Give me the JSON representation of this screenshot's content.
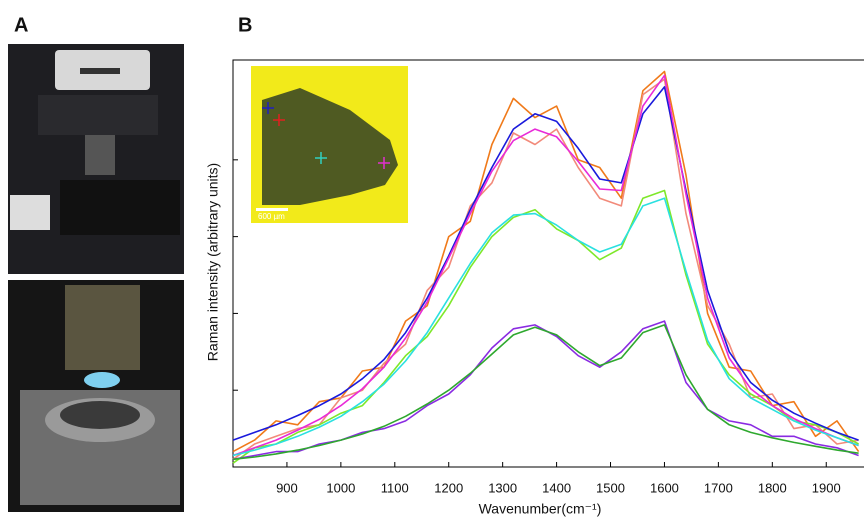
{
  "panels": {
    "a_label": "A",
    "b_label": "B"
  },
  "chart_data": {
    "type": "line",
    "x_label": "Wavenumber(cm⁻¹)",
    "y_label": "Raman intensity (arbitrary units)",
    "inset_scale_label": "600 µm",
    "x": [
      800,
      840,
      880,
      920,
      960,
      1000,
      1040,
      1080,
      1120,
      1160,
      1200,
      1240,
      1280,
      1320,
      1360,
      1400,
      1440,
      1480,
      1520,
      1560,
      1600,
      1640,
      1680,
      1720,
      1760,
      1800,
      1840,
      1880,
      1920,
      1960
    ],
    "xlim": [
      800,
      1970
    ],
    "xticks": [
      900,
      1000,
      1100,
      1200,
      1300,
      1400,
      1500,
      1600,
      1700,
      1800,
      1900
    ],
    "ylim": [
      0,
      5.3
    ],
    "yticks": [
      1,
      2,
      3,
      4
    ],
    "series": [
      {
        "color": "#f07a1a",
        "values": [
          0.2,
          0.35,
          0.6,
          0.55,
          0.85,
          0.9,
          1.25,
          1.3,
          1.9,
          2.1,
          3.0,
          3.2,
          4.2,
          4.8,
          4.55,
          4.7,
          4.0,
          3.9,
          3.5,
          4.9,
          5.15,
          3.8,
          2.0,
          1.3,
          1.25,
          0.8,
          0.85,
          0.4,
          0.6,
          0.2
        ]
      },
      {
        "color": "#f28a7a",
        "values": [
          0.1,
          0.3,
          0.4,
          0.5,
          0.55,
          0.9,
          1.0,
          1.35,
          1.6,
          2.3,
          2.6,
          3.4,
          3.7,
          4.35,
          4.2,
          4.4,
          3.9,
          3.5,
          3.4,
          4.85,
          5.05,
          3.3,
          2.1,
          1.6,
          0.9,
          0.95,
          0.5,
          0.55,
          0.3,
          0.35
        ]
      },
      {
        "color": "#7ee82a",
        "values": [
          0.05,
          0.25,
          0.3,
          0.45,
          0.55,
          0.7,
          0.8,
          1.1,
          1.45,
          1.7,
          2.1,
          2.6,
          3.0,
          3.25,
          3.35,
          3.1,
          2.95,
          2.7,
          2.85,
          3.5,
          3.6,
          2.5,
          1.6,
          1.2,
          0.95,
          0.8,
          0.6,
          0.55,
          0.45,
          0.3
        ]
      },
      {
        "color": "#8a2be2",
        "values": [
          0.1,
          0.15,
          0.2,
          0.2,
          0.3,
          0.35,
          0.45,
          0.5,
          0.6,
          0.8,
          0.95,
          1.2,
          1.55,
          1.8,
          1.85,
          1.7,
          1.45,
          1.3,
          1.5,
          1.8,
          1.9,
          1.1,
          0.75,
          0.6,
          0.55,
          0.4,
          0.4,
          0.3,
          0.25,
          0.15
        ]
      },
      {
        "color": "#1a1adc",
        "values": [
          0.35,
          0.45,
          0.55,
          0.67,
          0.8,
          0.95,
          1.15,
          1.4,
          1.75,
          2.2,
          2.75,
          3.35,
          3.9,
          4.4,
          4.6,
          4.5,
          4.15,
          3.75,
          3.7,
          4.6,
          4.95,
          3.6,
          2.3,
          1.5,
          1.1,
          0.87,
          0.7,
          0.57,
          0.45,
          0.35
        ]
      },
      {
        "color": "#e82ad8",
        "values": [
          0.15,
          0.25,
          0.35,
          0.48,
          0.62,
          0.8,
          1.02,
          1.3,
          1.68,
          2.15,
          2.72,
          3.3,
          3.85,
          4.25,
          4.4,
          4.3,
          3.98,
          3.62,
          3.6,
          4.7,
          5.1,
          3.55,
          2.2,
          1.42,
          1.02,
          0.8,
          0.63,
          0.5,
          0.38,
          0.28
        ]
      },
      {
        "color": "#2ae0e0",
        "values": [
          0.15,
          0.22,
          0.3,
          0.4,
          0.52,
          0.66,
          0.85,
          1.08,
          1.38,
          1.75,
          2.2,
          2.65,
          3.05,
          3.28,
          3.3,
          3.15,
          2.95,
          2.8,
          2.9,
          3.4,
          3.5,
          2.55,
          1.65,
          1.15,
          0.9,
          0.75,
          0.6,
          0.48,
          0.38,
          0.28
        ]
      },
      {
        "color": "#2ea82e",
        "values": [
          0.1,
          0.13,
          0.17,
          0.22,
          0.28,
          0.35,
          0.43,
          0.53,
          0.66,
          0.82,
          1.0,
          1.22,
          1.47,
          1.72,
          1.82,
          1.72,
          1.5,
          1.32,
          1.42,
          1.75,
          1.85,
          1.2,
          0.75,
          0.55,
          0.45,
          0.38,
          0.32,
          0.27,
          0.22,
          0.18
        ]
      }
    ]
  }
}
